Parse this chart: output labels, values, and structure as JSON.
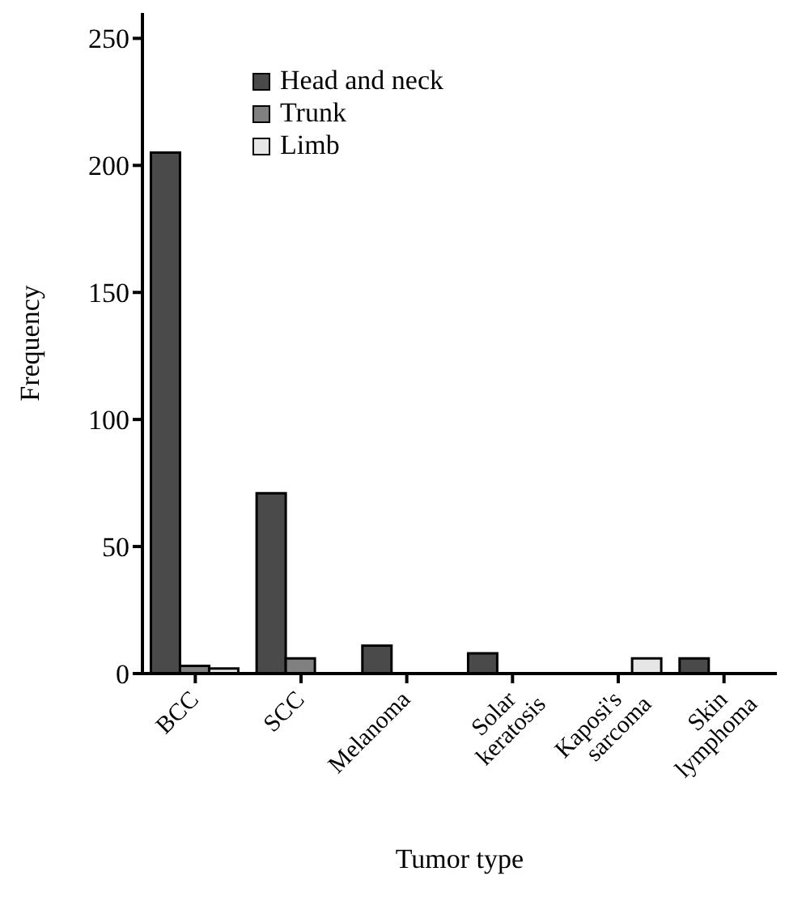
{
  "chart_data": {
    "type": "bar",
    "xlabel": "Tumor type",
    "ylabel": "Frequency",
    "categories": [
      "BCC",
      "SCC",
      "Melanoma",
      "Solar keratosis",
      "Kaposi's sarcoma",
      "Skin lymphoma"
    ],
    "series": [
      {
        "name": "Head and neck",
        "color": "#4a4a4a",
        "values": [
          205,
          71,
          11,
          8,
          null,
          6
        ]
      },
      {
        "name": "Trunk",
        "color": "#808080",
        "values": [
          3,
          6,
          null,
          null,
          null,
          null
        ]
      },
      {
        "name": "Limb",
        "color": "#e6e6e6",
        "values": [
          2,
          null,
          null,
          null,
          6,
          null
        ]
      }
    ],
    "ylim": [
      0,
      260
    ],
    "yticks": [
      0,
      50,
      100,
      150,
      200,
      250
    ],
    "grid": false,
    "legend": "top left"
  }
}
